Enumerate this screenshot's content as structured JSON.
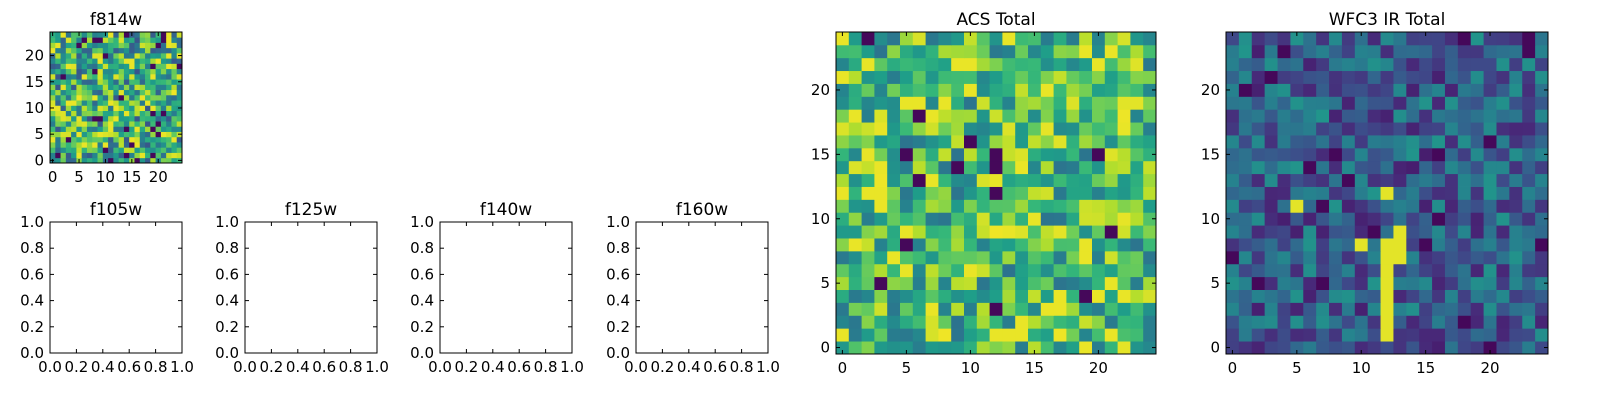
{
  "chart_data": [
    {
      "type": "heatmap",
      "panel": "f814w",
      "title": "f814w",
      "grid": [
        25,
        25
      ],
      "colormap": "viridis",
      "seed": 11,
      "base": 0.62,
      "spread": 0.36,
      "hot_fraction": 0.05,
      "dark_fraction": 0.05,
      "xlim": [
        -0.5,
        24.5
      ],
      "ylim": [
        -0.5,
        24.5
      ],
      "xticks": [
        0,
        5,
        10,
        15,
        20
      ],
      "yticks": [
        0,
        5,
        10,
        15,
        20
      ],
      "xtick_labels": [
        "0",
        "5",
        "10",
        "15",
        "20"
      ],
      "ytick_labels": [
        "0",
        "5",
        "10",
        "15",
        "20"
      ]
    },
    {
      "type": "empty",
      "panel": "f105w",
      "title": "f105w",
      "xlim": [
        0,
        1
      ],
      "ylim": [
        0,
        1
      ],
      "xtick_labels": [
        "0.0",
        "0.2",
        "0.4",
        "0.6",
        "0.8",
        "1.0"
      ],
      "ytick_labels": [
        "0.0",
        "0.2",
        "0.4",
        "0.6",
        "0.8",
        "1.0"
      ]
    },
    {
      "type": "empty",
      "panel": "f125w",
      "title": "f125w",
      "xlim": [
        0,
        1
      ],
      "ylim": [
        0,
        1
      ],
      "xtick_labels": [
        "0.0",
        "0.2",
        "0.4",
        "0.6",
        "0.8",
        "1.0"
      ],
      "ytick_labels": [
        "0.0",
        "0.2",
        "0.4",
        "0.6",
        "0.8",
        "1.0"
      ]
    },
    {
      "type": "empty",
      "panel": "f140w",
      "title": "f140w",
      "xlim": [
        0,
        1
      ],
      "ylim": [
        0,
        1
      ],
      "xtick_labels": [
        "0.0",
        "0.2",
        "0.4",
        "0.6",
        "0.8",
        "1.0"
      ],
      "ytick_labels": [
        "0.0",
        "0.2",
        "0.4",
        "0.6",
        "0.8",
        "1.0"
      ]
    },
    {
      "type": "empty",
      "panel": "f160w",
      "title": "f160w",
      "xlim": [
        0,
        1
      ],
      "ylim": [
        0,
        1
      ],
      "xtick_labels": [
        "0.0",
        "0.2",
        "0.4",
        "0.6",
        "0.8",
        "1.0"
      ],
      "ytick_labels": [
        "0.0",
        "0.2",
        "0.4",
        "0.6",
        "0.8",
        "1.0"
      ]
    },
    {
      "type": "heatmap",
      "panel": "acs_total",
      "title": "ACS Total",
      "grid": [
        25,
        25
      ],
      "colormap": "viridis",
      "seed": 23,
      "base": 0.68,
      "spread": 0.3,
      "hot_fraction": 0.08,
      "dark_fraction": 0.02,
      "xlim": [
        -0.5,
        24.5
      ],
      "ylim": [
        -0.5,
        24.5
      ],
      "xticks": [
        0,
        5,
        10,
        15,
        20
      ],
      "yticks": [
        0,
        5,
        10,
        15,
        20
      ],
      "xtick_labels": [
        "0",
        "5",
        "10",
        "15",
        "20"
      ],
      "ytick_labels": [
        "0",
        "5",
        "10",
        "15",
        "20"
      ]
    },
    {
      "type": "heatmap",
      "panel": "wfc3_ir_total",
      "title": "WFC3 IR Total",
      "grid": [
        25,
        25
      ],
      "colormap": "viridis",
      "seed": 37,
      "base": 0.3,
      "spread": 0.22,
      "hot_fraction": 0.0,
      "dark_fraction": 0.03,
      "bright_pixels": [
        [
          12,
          1
        ],
        [
          12,
          2
        ],
        [
          12,
          3
        ],
        [
          12,
          4
        ],
        [
          12,
          5
        ],
        [
          12,
          6
        ],
        [
          12,
          7
        ],
        [
          12,
          8
        ],
        [
          13,
          7
        ],
        [
          13,
          8
        ],
        [
          13,
          9
        ],
        [
          10,
          8
        ],
        [
          12,
          12
        ],
        [
          5,
          11
        ]
      ],
      "xlim": [
        -0.5,
        24.5
      ],
      "ylim": [
        -0.5,
        24.5
      ],
      "xticks": [
        0,
        5,
        10,
        15,
        20
      ],
      "yticks": [
        0,
        5,
        10,
        15,
        20
      ],
      "xtick_labels": [
        "0",
        "5",
        "10",
        "15",
        "20"
      ],
      "ytick_labels": [
        "0",
        "5",
        "10",
        "15",
        "20"
      ]
    }
  ]
}
